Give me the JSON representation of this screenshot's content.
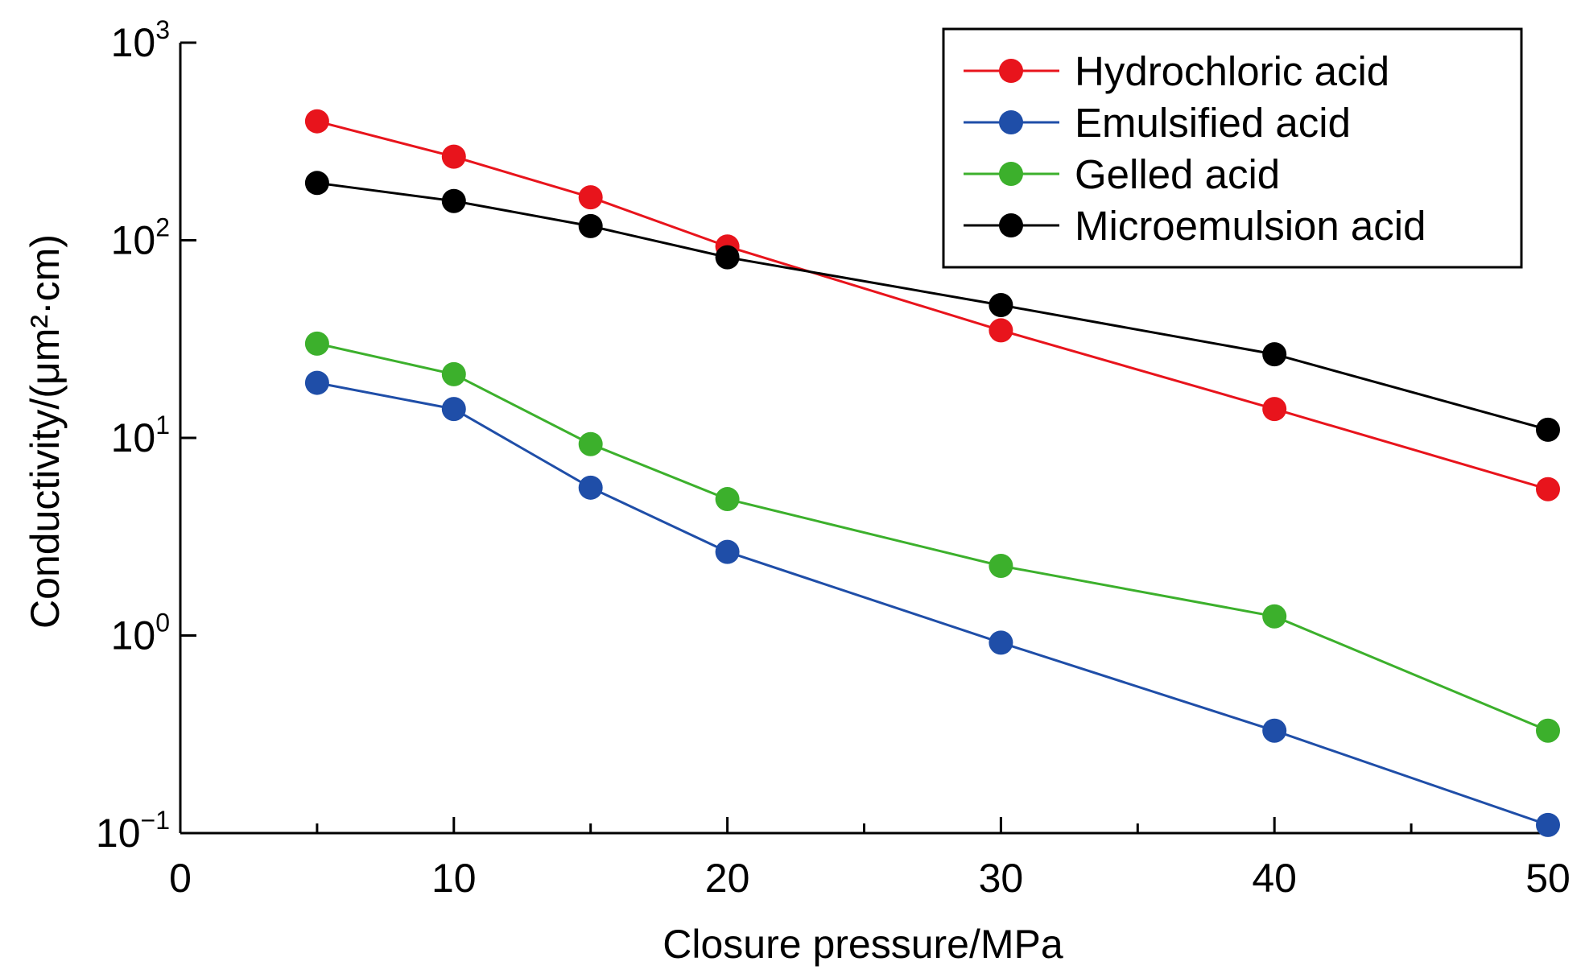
{
  "chart_data": {
    "type": "line",
    "title": "",
    "xlabel": "Closure pressure/MPa",
    "ylabel": "Conductivity/(μm²·cm)",
    "y_scale": "log",
    "xlim": [
      0,
      50
    ],
    "ylim": [
      0.1,
      1000
    ],
    "x_ticks": [
      0,
      10,
      20,
      30,
      40,
      50
    ],
    "y_ticks": [
      {
        "value": 0.1,
        "base": "10",
        "exp": "−1"
      },
      {
        "value": 1,
        "base": "10",
        "exp": "0"
      },
      {
        "value": 10,
        "base": "10",
        "exp": "1"
      },
      {
        "value": 100,
        "base": "10",
        "exp": "2"
      },
      {
        "value": 1000,
        "base": "10",
        "exp": "3"
      }
    ],
    "grid": false,
    "legend_position": "top-right",
    "x": [
      5,
      10,
      15,
      20,
      30,
      40,
      50
    ],
    "series": [
      {
        "name": "Hydrochloric acid",
        "color": "#e8141c",
        "values": [
          400,
          265,
          165,
          93,
          35,
          14,
          5.5
        ]
      },
      {
        "name": "Emulsified acid",
        "color": "#1f4ea8",
        "values": [
          19,
          14,
          5.6,
          2.65,
          0.92,
          0.33,
          0.11
        ]
      },
      {
        "name": "Gelled acid",
        "color": "#3cb02c",
        "values": [
          30,
          21,
          9.3,
          4.9,
          2.25,
          1.25,
          0.33
        ]
      },
      {
        "name": "Microemulsion acid",
        "color": "#000000",
        "values": [
          195,
          158,
          118,
          82,
          47,
          26.5,
          11
        ]
      }
    ]
  }
}
